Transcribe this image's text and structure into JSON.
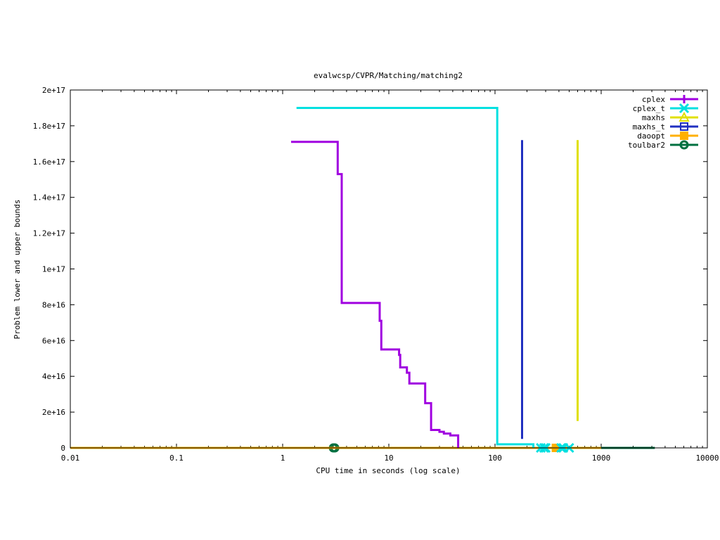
{
  "chart_data": {
    "type": "line",
    "title": "evalwcsp/CVPR/Matching/matching2",
    "xlabel": "CPU time in seconds (log scale)",
    "ylabel": "Problem lower and upper bounds",
    "x_scale": "log",
    "xlim": [
      0.01,
      10000
    ],
    "ylim": [
      0,
      2e+17
    ],
    "grid": false,
    "legend_position": "top-right",
    "x_ticks": [
      {
        "value": 0.01,
        "label": "0.01"
      },
      {
        "value": 0.1,
        "label": "0.1"
      },
      {
        "value": 1,
        "label": "1"
      },
      {
        "value": 10,
        "label": "10"
      },
      {
        "value": 100,
        "label": "100"
      },
      {
        "value": 1000,
        "label": "1000"
      },
      {
        "value": 10000,
        "label": "10000"
      }
    ],
    "y_ticks": [
      {
        "value": 0,
        "label": "0"
      },
      {
        "value": 2e+16,
        "label": "2e+16"
      },
      {
        "value": 4e+16,
        "label": "4e+16"
      },
      {
        "value": 6e+16,
        "label": "6e+16"
      },
      {
        "value": 8e+16,
        "label": "8e+16"
      },
      {
        "value": 1e+17,
        "label": "1e+17"
      },
      {
        "value": 1.2e+17,
        "label": "1.2e+17"
      },
      {
        "value": 1.4e+17,
        "label": "1.4e+17"
      },
      {
        "value": 1.6e+17,
        "label": "1.6e+17"
      },
      {
        "value": 1.8e+17,
        "label": "1.8e+17"
      },
      {
        "value": 2e+17,
        "label": "2e+17"
      }
    ],
    "series": [
      {
        "name": "cplex",
        "color": "#a000e0",
        "marker": "plus",
        "points": [
          [
            1.2,
            1.71e+17
          ],
          [
            3.3,
            1.71e+17
          ],
          [
            3.3,
            1.53e+17
          ],
          [
            3.6,
            1.53e+17
          ],
          [
            3.6,
            8.1e+16
          ],
          [
            8.2,
            8.1e+16
          ],
          [
            8.2,
            7.1e+16
          ],
          [
            8.5,
            7.1e+16
          ],
          [
            8.5,
            5.5e+16
          ],
          [
            12.5,
            5.5e+16
          ],
          [
            12.5,
            5.2e+16
          ],
          [
            12.8,
            5.2e+16
          ],
          [
            12.8,
            4.5e+16
          ],
          [
            14.8,
            4.5e+16
          ],
          [
            14.8,
            4.2e+16
          ],
          [
            15.6,
            4.2e+16
          ],
          [
            15.6,
            3.6e+16
          ],
          [
            22,
            3.6e+16
          ],
          [
            22,
            2.5e+16
          ],
          [
            25,
            2.5e+16
          ],
          [
            25,
            1e+16
          ],
          [
            30,
            1e+16
          ],
          [
            30,
            9000000000000000.0
          ],
          [
            33,
            9000000000000000.0
          ],
          [
            33,
            8000000000000000.0
          ],
          [
            38,
            8000000000000000.0
          ],
          [
            38,
            7000000000000000.0
          ],
          [
            45,
            7000000000000000.0
          ],
          [
            45,
            0
          ]
        ]
      },
      {
        "name": "cplex_t",
        "color": "#00e0e0",
        "marker": "x",
        "points": [
          [
            1.35,
            1.9e+17
          ],
          [
            105,
            1.9e+17
          ],
          [
            105,
            2000000000000000.0
          ],
          [
            230,
            2000000000000000.0
          ],
          [
            230,
            0
          ]
        ],
        "marker_points": [
          [
            270,
            0
          ],
          [
            290,
            0
          ],
          [
            300,
            0
          ],
          [
            420,
            0
          ],
          [
            440,
            0
          ],
          [
            500,
            0
          ]
        ]
      },
      {
        "name": "maxhs",
        "color": "#e0e000",
        "marker": "triangle",
        "points": [
          [
            600,
            1.72e+17
          ],
          [
            600,
            1.5e+16
          ]
        ]
      },
      {
        "name": "maxhs_t",
        "color": "#2030c0",
        "marker": "square",
        "points": [
          [
            180,
            1.72e+17
          ],
          [
            180,
            5000000000000000.0
          ]
        ]
      },
      {
        "name": "daoopt",
        "color": "#ffb000",
        "marker": "filled-square",
        "points": [
          [
            0.01,
            0
          ],
          [
            1000,
            0
          ]
        ],
        "marker_points": [
          [
            375,
            0
          ]
        ]
      },
      {
        "name": "toulbar2",
        "color": "#007040",
        "marker": "circle",
        "points": [
          [
            0.01,
            0
          ],
          [
            3200,
            0
          ]
        ],
        "marker_points": [
          [
            3.0,
            0
          ],
          [
            3.1,
            0
          ]
        ]
      }
    ]
  }
}
